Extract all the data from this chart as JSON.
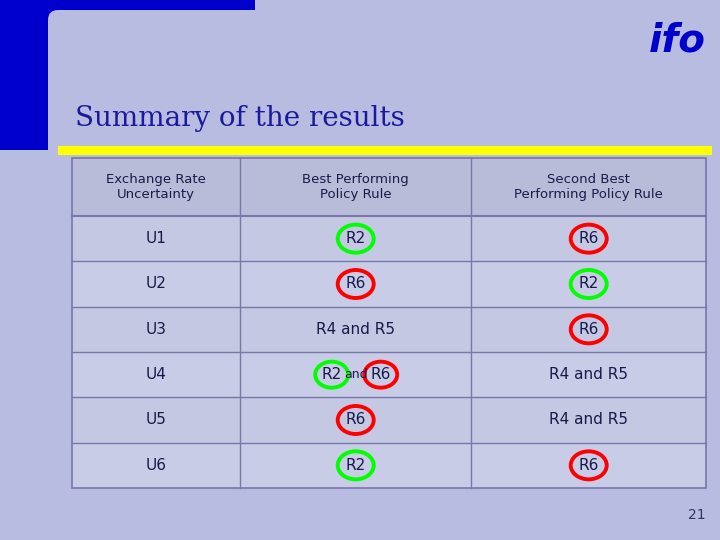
{
  "title": "Summary of the results",
  "title_color": "#1a1a9e",
  "bg_color": "#b8bce0",
  "blue_corner": "#0000cc",
  "yellow_color": "#ffff00",
  "page_number": "21",
  "ifo_color": "#0000cc",
  "col_headers": [
    "Exchange Rate\nUncertainty",
    "Best Performing\nPolicy Rule",
    "Second Best\nPerforming Policy Rule"
  ],
  "rows": [
    {
      "label": "U1",
      "best": "R2",
      "best_circle": "green",
      "second": "R6",
      "second_circle": "red"
    },
    {
      "label": "U2",
      "best": "R6",
      "best_circle": "red",
      "second": "R2",
      "second_circle": "green"
    },
    {
      "label": "U3",
      "best": "R4 and R5",
      "best_circle": null,
      "second": "R6",
      "second_circle": "red"
    },
    {
      "label": "U4",
      "best": "R2 and R6",
      "best_circle": "both",
      "second": "R4 and R5",
      "second_circle": null
    },
    {
      "label": "U5",
      "best": "R6",
      "best_circle": "red",
      "second": "R4 and R5",
      "second_circle": null
    },
    {
      "label": "U6",
      "best": "R2",
      "best_circle": "green",
      "second": "R6",
      "second_circle": "red"
    }
  ],
  "text_color": "#1a1a4a",
  "table_line_color": "#7777aa",
  "table_bg": "#bfc3df",
  "row_bg1": "#c4c8e2",
  "row_bg2": "#c8cce6",
  "header_bg": "#b8bcd8"
}
